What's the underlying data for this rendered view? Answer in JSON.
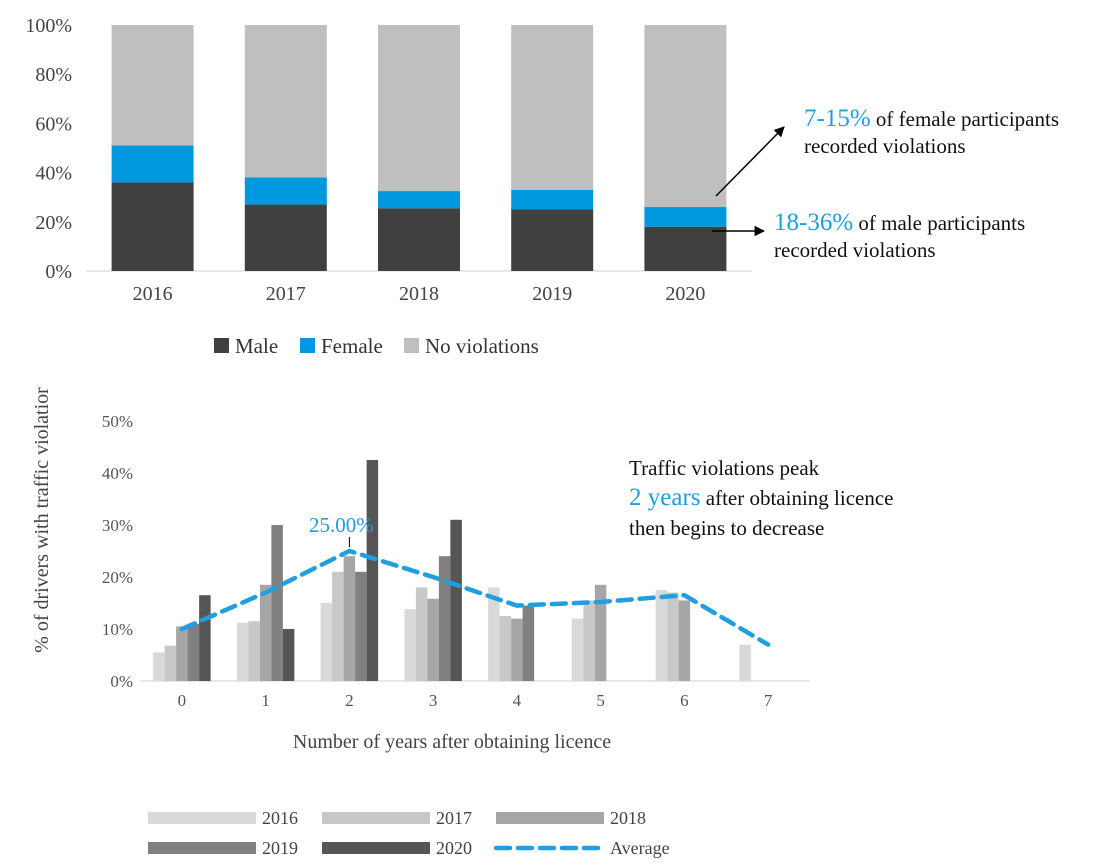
{
  "colors": {
    "male": "#404040",
    "female": "#0099e0",
    "no_violations": "#bfbfbf",
    "accent": "#1f9ee0",
    "y2016": "#d9d9d9",
    "y2017": "#c8c8c8",
    "y2018": "#a6a6a6",
    "y2019": "#808080",
    "y2020": "#555555",
    "average": "#1f9ee0"
  },
  "chart_data": [
    {
      "type": "bar",
      "stacked": true,
      "categories": [
        "2016",
        "2017",
        "2018",
        "2019",
        "2020"
      ],
      "series": [
        {
          "name": "Male",
          "values": [
            36,
            27,
            25.5,
            25,
            18
          ]
        },
        {
          "name": "Female",
          "values": [
            15,
            11,
            7,
            8,
            8
          ]
        },
        {
          "name": "No violations",
          "values": [
            49,
            62,
            67.5,
            67,
            74
          ]
        }
      ],
      "ylim": [
        0,
        100
      ],
      "yticks": [
        "0%",
        "20%",
        "40%",
        "60%",
        "80%",
        "100%"
      ],
      "legend": [
        "Male",
        "Female",
        "No violations"
      ],
      "annotations": {
        "female_highlight": "7-15%",
        "female_text": "of female participants",
        "female_text2": "recorded violations",
        "male_highlight": "18-36%",
        "male_text": "of male participants",
        "male_text2": "recorded violations"
      }
    },
    {
      "type": "bar",
      "categories": [
        "0",
        "1",
        "2",
        "3",
        "4",
        "5",
        "6",
        "7"
      ],
      "series": [
        {
          "name": "2016",
          "values": [
            5.5,
            11.2,
            15,
            13.8,
            18,
            12,
            17.5,
            7
          ]
        },
        {
          "name": "2017",
          "values": [
            6.8,
            11.5,
            21,
            18,
            12.5,
            15.5,
            17,
            null
          ]
        },
        {
          "name": "2018",
          "values": [
            10.5,
            18.5,
            24,
            15.8,
            12,
            18.5,
            15.5,
            null
          ]
        },
        {
          "name": "2019",
          "values": [
            11,
            30,
            21,
            24,
            14.5,
            null,
            null,
            null
          ]
        },
        {
          "name": "2020",
          "values": [
            16.5,
            10,
            42.5,
            31,
            null,
            null,
            null,
            null
          ]
        },
        {
          "name": "Average",
          "type": "line",
          "values": [
            10,
            17,
            25,
            20,
            14.5,
            15.2,
            16.5,
            7
          ]
        }
      ],
      "ylim": [
        0,
        50
      ],
      "yticks": [
        "0%",
        "10%",
        "20%",
        "30%",
        "40%",
        "50%"
      ],
      "xlabel": "Number of years after obtaining licence",
      "ylabel": "% of drivers with traffic violatior",
      "data_label": "25.00%",
      "legend": [
        "2016",
        "2017",
        "2018",
        "2019",
        "2020",
        "Average"
      ],
      "annotation": {
        "line1": "Traffic violations peak",
        "highlight": "2 years",
        "line2": "after obtaining licence",
        "line3": "then begins to decrease"
      }
    }
  ]
}
